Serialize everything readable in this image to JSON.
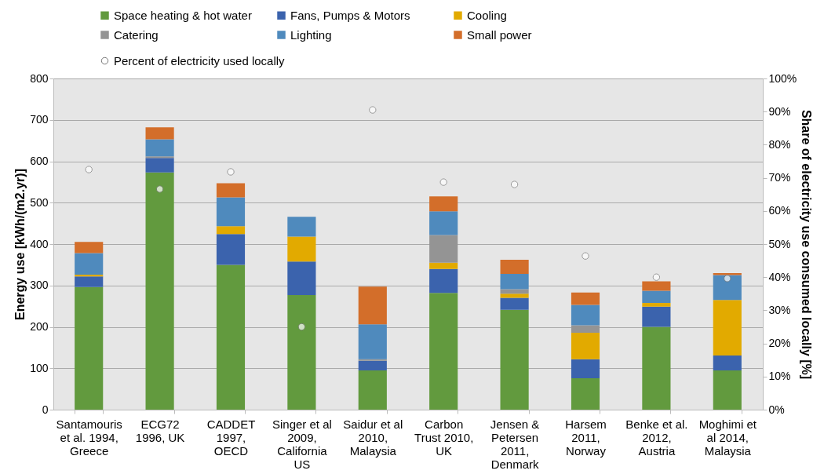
{
  "chart_data": {
    "type": "bar",
    "stacked": true,
    "ylabel": "Energy use [kWh/(m2.yr)]",
    "y2label": "Share of electricity use consumed locally [%]",
    "categories": [
      "Santamouris et al. 1994, Greece",
      "ECG72 1996, UK",
      "CADDET 1997, OECD",
      "Singer et al 2009, California US",
      "Saidur et al 2010, Malaysia",
      "Carbon Trust 2010, UK",
      "Jensen & Petersen 2011, Denmark",
      "Harsem 2011, Norway",
      "Benke et al. 2012, Austria",
      "Moghimi et al 2014, Malaysia"
    ],
    "series": [
      {
        "name": "Space heating & hot water",
        "color": "#629a3e",
        "values": [
          296,
          573,
          350,
          277,
          95,
          282,
          241,
          76,
          200,
          95
        ]
      },
      {
        "name": "Fans, Pumps & Motors",
        "color": "#3b63ad",
        "values": [
          26,
          35,
          74,
          81,
          23,
          58,
          29,
          46,
          49,
          36
        ]
      },
      {
        "name": "Cooling",
        "color": "#e2aa00",
        "values": [
          4,
          null,
          19,
          60,
          null,
          15,
          10,
          64,
          9,
          134
        ]
      },
      {
        "name": "Catering",
        "color": "#949494",
        "values": [
          null,
          4,
          null,
          null,
          4,
          67,
          11,
          18,
          null,
          null
        ]
      },
      {
        "name": "Lighting",
        "color": "#4f8abd",
        "values": [
          52,
          41,
          70,
          48,
          84,
          57,
          37,
          49,
          29,
          60
        ]
      },
      {
        "name": "Small power",
        "color": "#d36e2a",
        "values": [
          27,
          29,
          34,
          null,
          91,
          36,
          34,
          30,
          23,
          5
        ]
      },
      {
        "name": "Percent of electricity used locally",
        "type": "scatter",
        "axis": "y2",
        "marker": "circle",
        "color": "#ffffff",
        "values": [
          72.5,
          66.6,
          71.8,
          25,
          90.5,
          68.7,
          68,
          46.4,
          40,
          39.6
        ]
      }
    ],
    "ylim": [
      0,
      800
    ],
    "yticks": [
      0,
      100,
      200,
      300,
      400,
      500,
      600,
      700,
      800
    ],
    "y2lim": [
      0,
      100
    ],
    "y2ticks": [
      {
        "value": 0,
        "label": "0%"
      },
      {
        "value": 10,
        "label": "10%"
      },
      {
        "value": 20,
        "label": "20%"
      },
      {
        "value": 30,
        "label": "30%"
      },
      {
        "value": 40,
        "label": "40%"
      },
      {
        "value": 50,
        "label": "50%"
      },
      {
        "value": 60,
        "label": "60%"
      },
      {
        "value": 70,
        "label": "70%"
      },
      {
        "value": 80,
        "label": "80%"
      },
      {
        "value": 90,
        "label": "90%"
      },
      {
        "value": 100,
        "label": "100%"
      }
    ],
    "grid": "y",
    "legend": "top"
  }
}
